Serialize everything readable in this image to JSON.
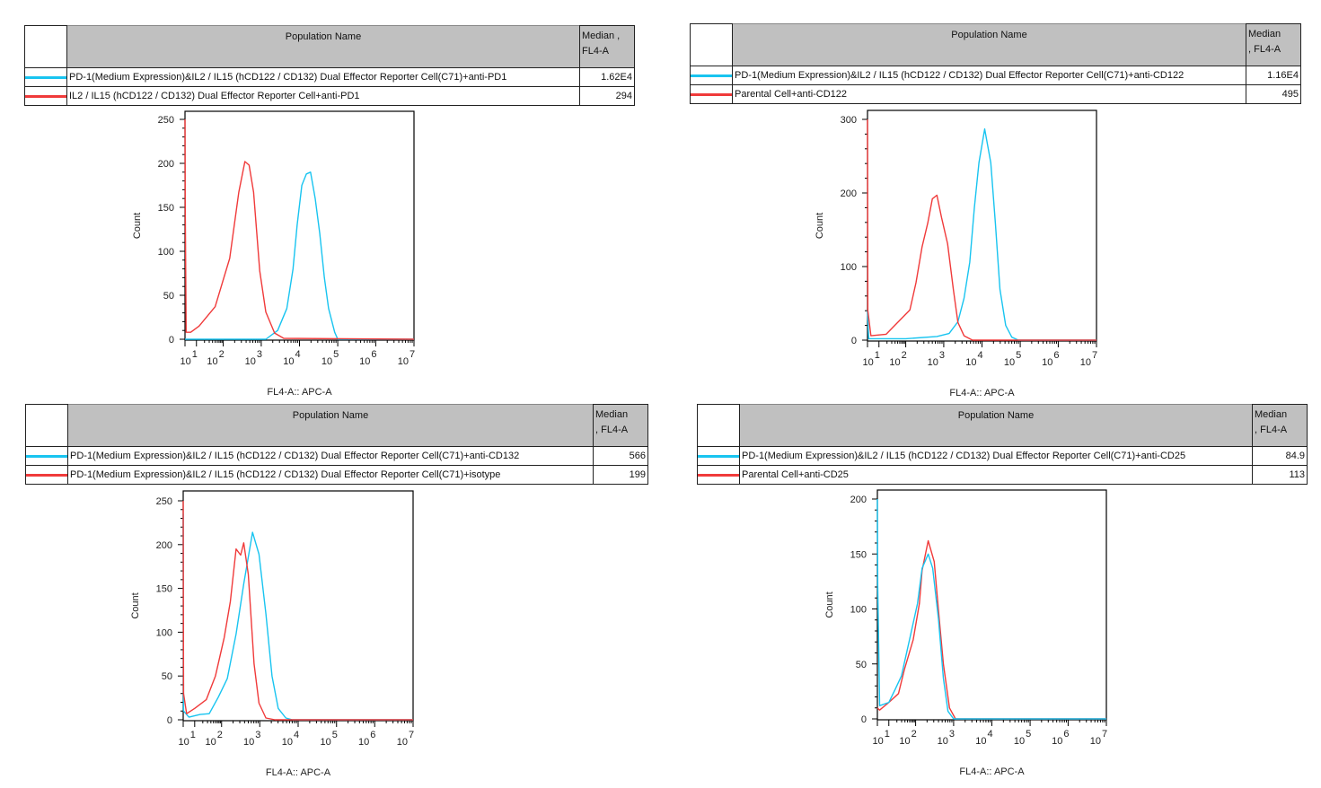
{
  "colors": {
    "blue": "#18c4f0",
    "red": "#f03a3a"
  },
  "chart_data": [
    {
      "type": "line",
      "xlabel": "FL4-A:: APC-A",
      "ylabel": "Count",
      "ylim": [
        0,
        250
      ],
      "yticks": [
        "0",
        "50",
        "100",
        "150",
        "200",
        "250"
      ],
      "xticks_exponents": [
        "1",
        "2",
        "3",
        "4",
        "5",
        "6",
        "7"
      ],
      "xtick_base": "10",
      "xscale": "biexponential (log10 decades 0-7)",
      "table": {
        "header_name": "Population Name",
        "header_median": "Median ,\nFL4-A",
        "rows": [
          {
            "name": "PD-1(Medium Expression)&IL2 / IL15 (hCD122 / CD132) Dual Effector Reporter Cell(C71)+anti-PD1",
            "median": "1.62E4",
            "color": "#18c4f0"
          },
          {
            "name": "IL2 / IL15 (hCD122 / CD132) Dual Effector Reporter Cell+anti-PD1",
            "median": "294",
            "color": "#f03a3a"
          }
        ]
      },
      "series": [
        {
          "name": "blue",
          "color": "#18c4f0",
          "x": [
            0,
            3.12,
            3.43,
            3.67,
            3.83,
            3.94,
            4.06,
            4.18,
            4.29,
            4.41,
            4.53,
            4.65,
            4.76,
            4.92,
            5.0,
            7
          ],
          "y": [
            0,
            0,
            10,
            35,
            80,
            130,
            175,
            188,
            190,
            160,
            120,
            70,
            35,
            8,
            0,
            0
          ]
        },
        {
          "name": "red",
          "color": "#f03a3a",
          "x": [
            0,
            0.02,
            0.1,
            0.5,
            1.1,
            1.7,
            2.17,
            2.41,
            2.57,
            2.68,
            2.8,
            2.96,
            3.12,
            3.35,
            3.59,
            7
          ],
          "y": [
            250,
            150,
            8,
            8,
            15,
            37,
            92,
            167,
            202,
            198,
            167,
            78,
            31,
            7,
            1,
            0
          ]
        }
      ]
    },
    {
      "type": "line",
      "xlabel": "FL4-A:: APC-A",
      "ylabel": "Count",
      "ylim": [
        0,
        300
      ],
      "yticks": [
        "0",
        "100",
        "200",
        "300"
      ],
      "xticks_exponents": [
        "1",
        "2",
        "3",
        "4",
        "5",
        "6",
        "7"
      ],
      "xtick_base": "10",
      "xscale": "biexponential (log10 decades 0-7)",
      "table": {
        "header_name": "Population Name",
        "header_median": "Median\n, FL4-A",
        "rows": [
          {
            "name": "PD-1(Medium Expression)&IL2 / IL15 (hCD122 / CD132) Dual Effector Reporter Cell(C71)+anti-CD122",
            "median": "1.16E4",
            "color": "#18c4f0"
          },
          {
            "name": "Parental Cell+anti-CD122",
            "median": "495",
            "color": "#f03a3a"
          }
        ]
      },
      "series": [
        {
          "name": "blue",
          "color": "#18c4f0",
          "x": [
            0,
            0.1,
            2.0,
            2.82,
            3.14,
            3.37,
            3.53,
            3.68,
            3.8,
            3.92,
            4.07,
            4.23,
            4.35,
            4.47,
            4.62,
            4.78,
            4.95,
            7
          ],
          "y": [
            40,
            2,
            2,
            5,
            9,
            25,
            57,
            106,
            180,
            241,
            287,
            241,
            159,
            69,
            20,
            4,
            0,
            0
          ]
        },
        {
          "name": "red",
          "color": "#f03a3a",
          "x": [
            0,
            0.03,
            0.3,
            1.27,
            1.7,
            2.11,
            2.27,
            2.43,
            2.58,
            2.7,
            2.82,
            2.94,
            3.1,
            3.25,
            3.37,
            3.53,
            3.75,
            7
          ],
          "y": [
            300,
            40,
            6,
            8,
            24,
            41,
            78,
            127,
            159,
            192,
            197,
            167,
            131,
            69,
            24,
            6,
            0,
            0
          ]
        }
      ]
    },
    {
      "type": "line",
      "xlabel": "FL4-A:: APC-A",
      "ylabel": "Count",
      "ylim": [
        0,
        250
      ],
      "yticks": [
        "0",
        "50",
        "100",
        "150",
        "200",
        "250"
      ],
      "xticks_exponents": [
        "1",
        "2",
        "3",
        "4",
        "5",
        "6",
        "7"
      ],
      "xtick_base": "10",
      "xscale": "biexponential (log10 decades 0-7)",
      "table": {
        "header_name": "Population Name",
        "header_median": "Median\n, FL4-A",
        "rows": [
          {
            "name": "PD-1(Medium Expression)&IL2 / IL15 (hCD122 / CD132) Dual Effector Reporter Cell(C71)+anti-CD132",
            "median": "566",
            "color": "#18c4f0"
          },
          {
            "name": "PD-1(Medium Expression)&IL2 / IL15 (hCD122 / CD132) Dual Effector Reporter Cell(C71)+isotype",
            "median": "199",
            "color": "#f03a3a"
          }
        ]
      },
      "series": [
        {
          "name": "blue",
          "color": "#18c4f0",
          "x": [
            0,
            0.03,
            0.5,
            1.2,
            1.54,
            1.88,
            2.15,
            2.38,
            2.58,
            2.81,
            2.98,
            3.16,
            3.32,
            3.48,
            3.68,
            3.85,
            7
          ],
          "y": [
            235,
            10,
            3,
            6,
            7,
            26,
            47,
            98,
            155,
            214,
            189,
            121,
            50,
            13,
            2,
            0,
            0
          ]
        },
        {
          "name": "red",
          "color": "#f03a3a",
          "x": [
            0,
            0.03,
            0.3,
            1.0,
            1.43,
            1.77,
            2.07,
            2.23,
            2.38,
            2.5,
            2.58,
            2.7,
            2.85,
            2.98,
            3.16,
            3.4,
            7
          ],
          "y": [
            250,
            30,
            7,
            13,
            23,
            50,
            94,
            135,
            195,
            188,
            202,
            166,
            64,
            19,
            2,
            0,
            0
          ]
        }
      ]
    },
    {
      "type": "line",
      "xlabel": "FL4-A:: APC-A",
      "ylabel": "Count",
      "ylim": [
        0,
        200
      ],
      "yticks": [
        "0",
        "50",
        "100",
        "150",
        "200"
      ],
      "xticks_exponents": [
        "1",
        "2",
        "3",
        "4",
        "5",
        "6",
        "7"
      ],
      "xtick_base": "10",
      "xscale": "biexponential (log10 decades 0-7)",
      "table": {
        "header_name": "Population Name",
        "header_median": "Median\n, FL4-A",
        "rows": [
          {
            "name": "PD-1(Medium Expression)&IL2 / IL15 (hCD122 / CD132) Dual Effector Reporter Cell(C71)+anti-CD25",
            "median": "84.9",
            "color": "#18c4f0"
          },
          {
            "name": "Parental Cell+anti-CD25",
            "median": "113",
            "color": "#f03a3a"
          }
        ]
      },
      "series": [
        {
          "name": "red",
          "color": "#f03a3a",
          "x": [
            0,
            0.2,
            1.0,
            1.36,
            1.58,
            1.91,
            2.1,
            2.17,
            2.33,
            2.49,
            2.6,
            2.73,
            2.89,
            3.05,
            7
          ],
          "y": [
            10,
            8,
            15,
            23,
            45,
            72,
            105,
            135,
            162,
            143,
            99,
            50,
            10,
            0,
            0
          ]
        },
        {
          "name": "blue",
          "color": "#18c4f0",
          "x": [
            0,
            0.03,
            0.2,
            1.0,
            1.24,
            1.47,
            1.8,
            2.05,
            2.17,
            2.33,
            2.45,
            2.6,
            2.73,
            2.85,
            3.0,
            7
          ],
          "y": [
            200,
            122,
            12,
            15,
            27,
            39,
            75,
            105,
            137,
            150,
            137,
            91,
            37,
            7,
            0,
            0
          ]
        }
      ]
    }
  ]
}
